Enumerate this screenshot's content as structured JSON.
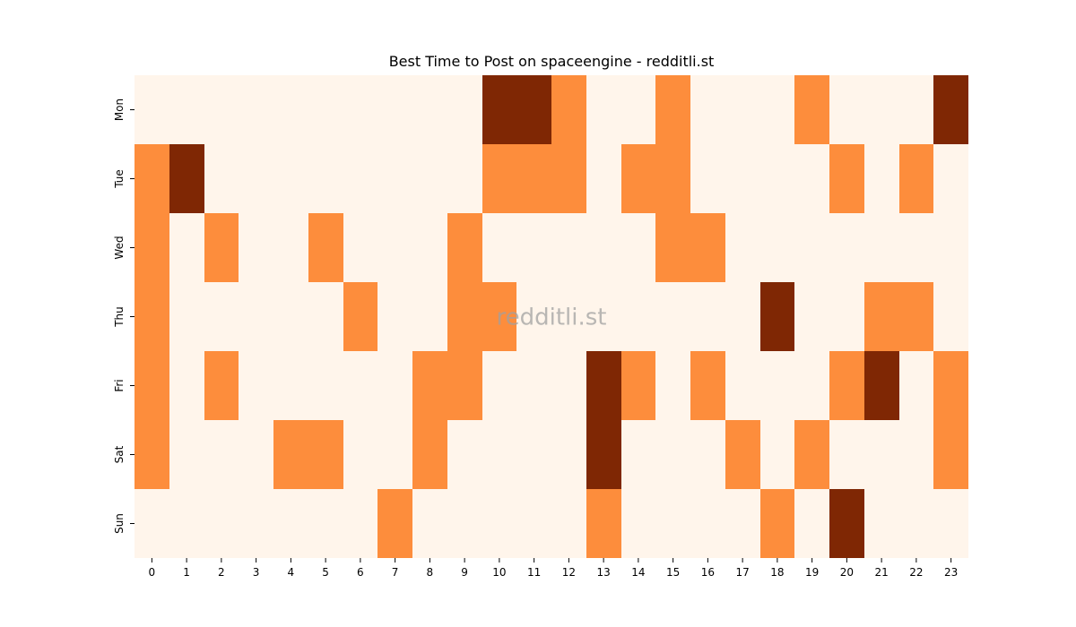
{
  "chart_data": {
    "type": "heatmap",
    "title": "Best Time to Post on spaceengine - redditli.st",
    "watermark": "redditli.st",
    "x": [
      "0",
      "1",
      "2",
      "3",
      "4",
      "5",
      "6",
      "7",
      "8",
      "9",
      "10",
      "11",
      "12",
      "13",
      "14",
      "15",
      "16",
      "17",
      "18",
      "19",
      "20",
      "21",
      "22",
      "23"
    ],
    "y": [
      "Mon",
      "Tue",
      "Wed",
      "Thu",
      "Fri",
      "Sat",
      "Sun"
    ],
    "values": [
      [
        0,
        0,
        0,
        0,
        0,
        0,
        0,
        0,
        0,
        0,
        2,
        2,
        1,
        0,
        0,
        1,
        0,
        0,
        0,
        1,
        0,
        0,
        0,
        2
      ],
      [
        1,
        2,
        0,
        0,
        0,
        0,
        0,
        0,
        0,
        0,
        1,
        1,
        1,
        0,
        1,
        1,
        0,
        0,
        0,
        0,
        1,
        0,
        1,
        0
      ],
      [
        1,
        0,
        1,
        0,
        0,
        1,
        0,
        0,
        0,
        1,
        0,
        0,
        0,
        0,
        0,
        1,
        1,
        0,
        0,
        0,
        0,
        0,
        0,
        0
      ],
      [
        1,
        0,
        0,
        0,
        0,
        0,
        1,
        0,
        0,
        1,
        1,
        0,
        0,
        0,
        0,
        0,
        0,
        0,
        2,
        0,
        0,
        1,
        1,
        0
      ],
      [
        1,
        0,
        1,
        0,
        0,
        0,
        0,
        0,
        1,
        1,
        0,
        0,
        0,
        2,
        1,
        0,
        1,
        0,
        0,
        0,
        1,
        2,
        0,
        1
      ],
      [
        1,
        0,
        0,
        0,
        1,
        1,
        0,
        0,
        1,
        0,
        0,
        0,
        0,
        2,
        0,
        0,
        0,
        1,
        0,
        1,
        0,
        0,
        0,
        1
      ],
      [
        0,
        0,
        0,
        0,
        0,
        0,
        0,
        1,
        0,
        0,
        0,
        0,
        0,
        1,
        0,
        0,
        0,
        0,
        1,
        0,
        2,
        0,
        0,
        0
      ]
    ],
    "colors": {
      "0": "#fff5eb",
      "1": "#fd8d3c",
      "2": "#7f2704"
    },
    "colormap": "Oranges",
    "colorbar": false
  }
}
